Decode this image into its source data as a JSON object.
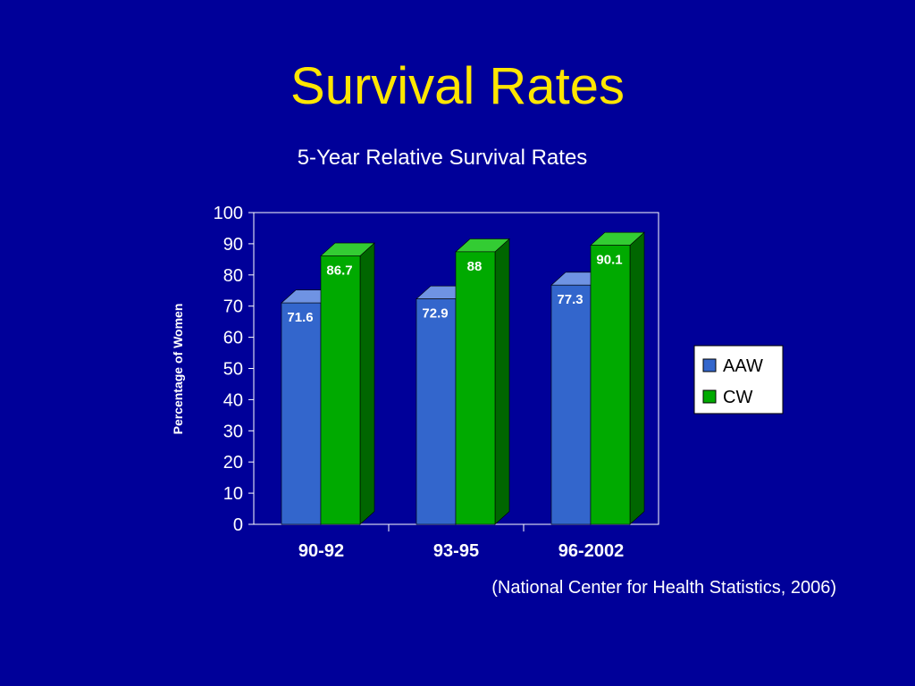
{
  "slide": {
    "title": "Survival Rates",
    "citation": "(National Center for Health Statistics, 2006)"
  },
  "colors": {
    "background": "#000099",
    "title": "#FFE600",
    "text": "#FFFFFF",
    "aaw_front": "#3366CC",
    "aaw_top": "#6F93E3",
    "aaw_side": "#1F3F8C",
    "cw_front": "#00AA00",
    "cw_top": "#33CC33",
    "cw_side": "#006600"
  },
  "chart_data": {
    "type": "bar",
    "title": "5-Year Relative Survival Rates",
    "xlabel": "",
    "ylabel": "Percentage of Women",
    "ylim": [
      0,
      100
    ],
    "yticks": [
      0,
      10,
      20,
      30,
      40,
      50,
      60,
      70,
      80,
      90,
      100
    ],
    "categories": [
      "90-92",
      "93-95",
      "96-2002"
    ],
    "series": [
      {
        "name": "AAW",
        "values": [
          71.6,
          72.9,
          77.3
        ],
        "labels": [
          "71.6",
          "72.9",
          "77.3"
        ]
      },
      {
        "name": "CW",
        "values": [
          86.7,
          88,
          90.1
        ],
        "labels": [
          "86.7",
          "88",
          "90.1"
        ]
      }
    ],
    "legend": "right",
    "grid": false
  }
}
